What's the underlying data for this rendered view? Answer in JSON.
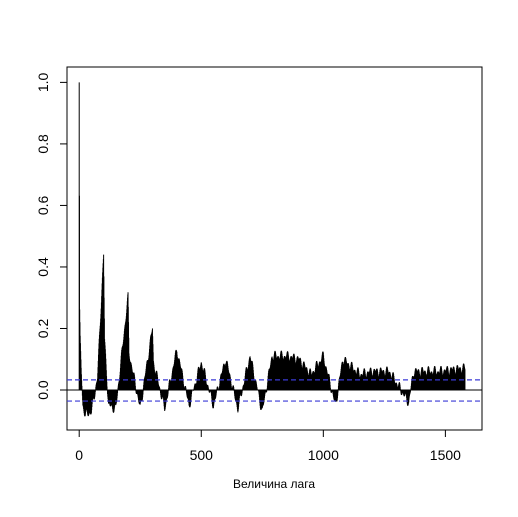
{
  "chart_data": {
    "type": "bar",
    "xlabel": "Величина лага",
    "ylabel": "",
    "title": "",
    "xlim": [
      -50,
      1650
    ],
    "ylim": [
      -0.13,
      1.05
    ],
    "x_ticks": [
      0,
      500,
      1000,
      1500
    ],
    "x_tick_labels": [
      "0",
      "500",
      "1000",
      "1500"
    ],
    "y_ticks": [
      0.0,
      0.2,
      0.4,
      0.6,
      0.8,
      1.0
    ],
    "y_tick_labels": [
      "0.0",
      "0.2",
      "0.4",
      "0.6",
      "0.8",
      "1.0"
    ],
    "confidence_band": {
      "upper": 0.033,
      "lower": -0.036,
      "color": "#3a3ad6",
      "style": "dashed"
    },
    "zero_line": 0,
    "bar_color": "#000000",
    "max_lag": 1580,
    "series": [
      {
        "values_by_lag": [
          {
            "lag": 0,
            "acf": 1.0
          },
          {
            "lag": 2,
            "acf": 0.25
          },
          {
            "lag": 4,
            "acf": 0.16
          },
          {
            "lag": 8,
            "acf": 0.07
          },
          {
            "lag": 15,
            "acf": -0.05
          },
          {
            "lag": 25,
            "acf": -0.08
          },
          {
            "lag": 50,
            "acf": -0.07
          },
          {
            "lag": 75,
            "acf": 0.04
          },
          {
            "lag": 100,
            "acf": 0.44
          },
          {
            "lag": 104,
            "acf": 0.16
          },
          {
            "lag": 120,
            "acf": -0.05
          },
          {
            "lag": 150,
            "acf": -0.06
          },
          {
            "lag": 200,
            "acf": 0.3
          },
          {
            "lag": 204,
            "acf": 0.12
          },
          {
            "lag": 250,
            "acf": -0.06
          },
          {
            "lag": 300,
            "acf": 0.2
          },
          {
            "lag": 304,
            "acf": 0.09
          },
          {
            "lag": 350,
            "acf": -0.06
          },
          {
            "lag": 400,
            "acf": 0.13
          },
          {
            "lag": 450,
            "acf": -0.05
          },
          {
            "lag": 500,
            "acf": 0.09
          },
          {
            "lag": 550,
            "acf": -0.05
          },
          {
            "lag": 600,
            "acf": 0.1
          },
          {
            "lag": 650,
            "acf": -0.06
          },
          {
            "lag": 700,
            "acf": 0.11
          },
          {
            "lag": 750,
            "acf": -0.07
          },
          {
            "lag": 790,
            "acf": 0.11
          },
          {
            "lag": 850,
            "acf": 0.11
          },
          {
            "lag": 900,
            "acf": 0.1
          },
          {
            "lag": 950,
            "acf": 0.05
          },
          {
            "lag": 1000,
            "acf": 0.11
          },
          {
            "lag": 1050,
            "acf": -0.05
          },
          {
            "lag": 1080,
            "acf": 0.1
          },
          {
            "lag": 1150,
            "acf": 0.05
          },
          {
            "lag": 1200,
            "acf": 0.06
          },
          {
            "lag": 1270,
            "acf": 0.06
          },
          {
            "lag": 1350,
            "acf": -0.04
          },
          {
            "lag": 1370,
            "acf": 0.06
          },
          {
            "lag": 1470,
            "acf": 0.06
          },
          {
            "lag": 1570,
            "acf": 0.07
          }
        ]
      }
    ]
  }
}
